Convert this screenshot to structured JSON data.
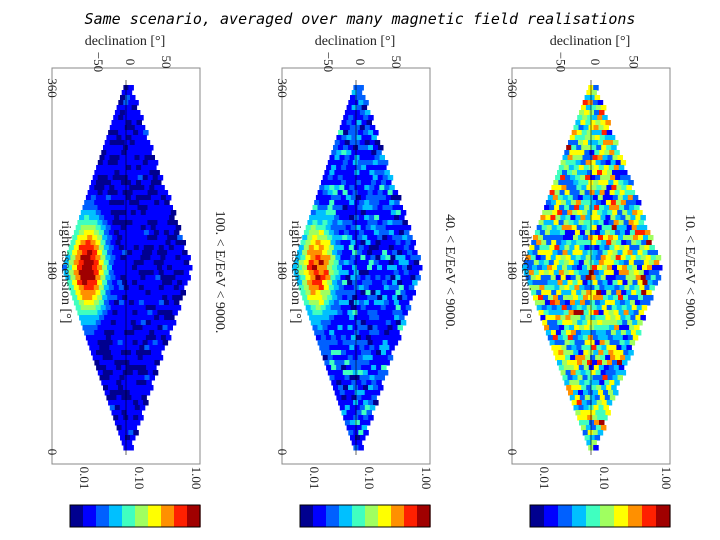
{
  "title": "Same scenario, averaged over many magnetic field realisations",
  "chart_data": [
    {
      "type": "heatmap",
      "projection": "sinusoidal sky map, rotated 90°",
      "energy_label": "100. < E/EeV < 9000.",
      "xlabel": "declination [°]",
      "ylabel": "right ascension [°]",
      "xticks": [
        "−50",
        "0",
        "50"
      ],
      "yticks": [
        "360",
        "180",
        "0"
      ],
      "colorbar": {
        "ticks": [
          "0.01",
          "0.10",
          "1.00"
        ],
        "scale": "log"
      },
      "hotspot": {
        "ra": 180,
        "dec": -50,
        "peak": 1.0
      },
      "background_level": 0.01,
      "noise": "low"
    },
    {
      "type": "heatmap",
      "projection": "sinusoidal sky map, rotated 90°",
      "energy_label": "40. < E/EeV < 9000.",
      "xlabel": "declination [°]",
      "ylabel": "right ascension [°]",
      "xticks": [
        "−50",
        "0",
        "50"
      ],
      "yticks": [
        "360",
        "180",
        "0"
      ],
      "colorbar": {
        "ticks": [
          "0.01",
          "0.10",
          "1.00"
        ],
        "scale": "log"
      },
      "hotspot": {
        "ra": 180,
        "dec": -50,
        "peak": 0.9
      },
      "background_level": 0.03,
      "noise": "medium"
    },
    {
      "type": "heatmap",
      "projection": "sinusoidal sky map, rotated 90°",
      "energy_label": "10. < E/EeV < 9000.",
      "xlabel": "declination [°]",
      "ylabel": "right ascension [°]",
      "xticks": [
        "−50",
        "0",
        "50"
      ],
      "yticks": [
        "360",
        "180",
        "0"
      ],
      "colorbar": {
        "ticks": [
          "0.01",
          "0.10",
          "1.00"
        ],
        "scale": "log"
      },
      "hotspot": null,
      "background_level": 0.3,
      "noise": "high"
    }
  ],
  "colormap": [
    "#00008f",
    "#0000ff",
    "#0060ff",
    "#00c0ff",
    "#40ffc0",
    "#a0ff60",
    "#ffff00",
    "#ff9000",
    "#ff2000",
    "#a00000"
  ]
}
